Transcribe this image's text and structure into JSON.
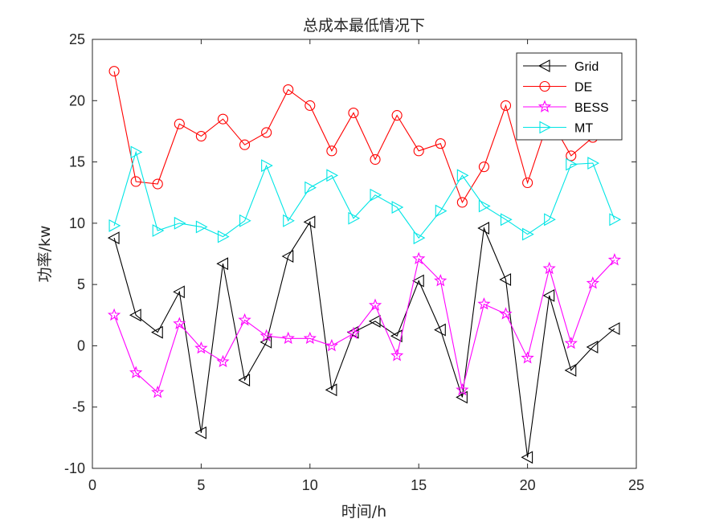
{
  "chart_data": {
    "type": "line",
    "title": "总成本最低情况下",
    "xlabel": "时间/h",
    "ylabel": "功率/kw",
    "xlim": [
      0,
      25
    ],
    "ylim": [
      -10,
      25
    ],
    "xticks": [
      0,
      5,
      10,
      15,
      20,
      25
    ],
    "yticks": [
      -10,
      -5,
      0,
      5,
      10,
      15,
      20,
      25
    ],
    "xtick_labels": [
      "0",
      "5",
      "10",
      "15",
      "20",
      "25"
    ],
    "ytick_labels": [
      "-10",
      "-5",
      "0",
      "5",
      "10",
      "15",
      "20",
      "25"
    ],
    "grid": false,
    "legend_position": "top-right",
    "x": [
      1,
      2,
      3,
      4,
      5,
      6,
      7,
      8,
      9,
      10,
      11,
      12,
      13,
      14,
      15,
      16,
      17,
      18,
      19,
      20,
      21,
      22,
      23,
      24
    ],
    "series": [
      {
        "name": "Grid",
        "color": "#000000",
        "marker": "triangle-left",
        "values": [
          8.8,
          2.5,
          1.1,
          4.4,
          -7.1,
          6.7,
          -2.8,
          0.3,
          7.3,
          10.1,
          -3.6,
          1.1,
          2.0,
          0.8,
          5.3,
          1.3,
          -4.2,
          9.6,
          5.4,
          -9.1,
          4.1,
          -2.0,
          -0.1,
          1.4
        ]
      },
      {
        "name": "DE",
        "color": "#ff0000",
        "marker": "circle",
        "values": [
          22.4,
          13.4,
          13.2,
          18.1,
          17.1,
          18.5,
          16.4,
          17.4,
          20.9,
          19.6,
          15.9,
          19.0,
          15.2,
          18.8,
          15.9,
          16.5,
          11.7,
          14.6,
          19.6,
          13.3,
          18.6,
          15.5,
          17.0,
          18.3
        ]
      },
      {
        "name": "BESS",
        "color": "#ff00ff",
        "marker": "star",
        "values": [
          2.5,
          -2.2,
          -3.8,
          1.8,
          -0.2,
          -1.3,
          2.1,
          0.8,
          0.6,
          0.6,
          0.0,
          1.0,
          3.3,
          -0.8,
          7.1,
          5.3,
          -3.6,
          3.4,
          2.6,
          -1.0,
          6.3,
          0.2,
          5.1,
          7.0
        ]
      },
      {
        "name": "MT",
        "color": "#00e5e5",
        "marker": "triangle-right",
        "values": [
          9.8,
          15.8,
          9.4,
          10.0,
          9.7,
          8.9,
          10.2,
          14.7,
          10.2,
          12.9,
          13.9,
          10.4,
          12.3,
          11.3,
          8.8,
          11.0,
          13.9,
          11.4,
          10.3,
          9.1,
          10.3,
          14.8,
          14.9,
          10.3
        ]
      }
    ]
  }
}
